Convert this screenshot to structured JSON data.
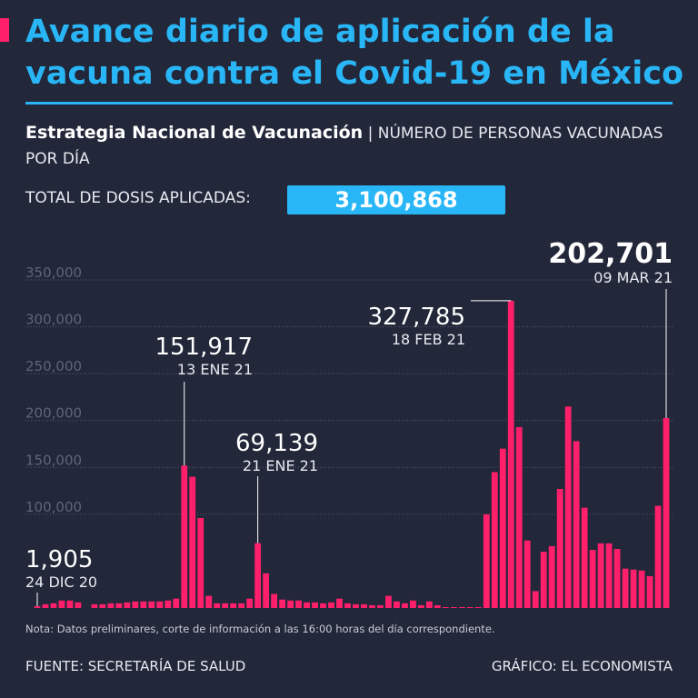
{
  "header": {
    "title": "Avance diario de aplicación de la vacuna contra el Covid-19 en México",
    "subtitle_bold": "Estrategia Nacional de Vacunación",
    "subtitle_rest": "| NÚMERO DE PERSONAS VACUNADAS POR DÍA",
    "total_label": "TOTAL DE DOSIS APLICADAS:",
    "total_value": "3,100,868"
  },
  "footer": {
    "note": "Nota: Datos preliminares, corte de información a las 16:00 horas del día correspondiente.",
    "source": "FUENTE: SECRETARÍA DE SALUD",
    "credit": "GRÁFICO: EL ECONOMISTA"
  },
  "colors": {
    "background": "#22273a",
    "accent_blue": "#29b6f6",
    "bar": "#ff1f6b",
    "grid": "#555b70",
    "tick": "#5f6579"
  },
  "chart_data": {
    "type": "bar",
    "title": "Avance diario de aplicación de la vacuna contra el Covid-19 en México",
    "xlabel": "",
    "ylabel": "Número de personas vacunadas por día",
    "ylim": [
      0,
      350000
    ],
    "yticks": [
      {
        "value": 350000,
        "label": "350,000"
      },
      {
        "value": 300000,
        "label": "300,000"
      },
      {
        "value": 250000,
        "label": "250,000"
      },
      {
        "value": 200000,
        "label": "200,000"
      },
      {
        "value": 150000,
        "label": "150,000"
      },
      {
        "value": 100000,
        "label": "100,000"
      }
    ],
    "first_date": "24 DIC 20",
    "last_date": "09 MAR 21",
    "values": [
      1905,
      4000,
      5000,
      8000,
      8000,
      6000,
      0,
      4000,
      4000,
      5000,
      5000,
      6000,
      7000,
      7000,
      7000,
      7000,
      8000,
      10000,
      151917,
      140000,
      96000,
      13000,
      5000,
      5000,
      5000,
      5000,
      10000,
      69139,
      37000,
      15000,
      9000,
      8000,
      8000,
      6000,
      6000,
      5000,
      6000,
      10000,
      5000,
      4000,
      4000,
      3000,
      3000,
      13000,
      7000,
      5000,
      8000,
      3000,
      7000,
      3000,
      1000,
      1000,
      1000,
      1000,
      1000,
      100000,
      145000,
      170000,
      327785,
      193000,
      72000,
      18000,
      60000,
      66000,
      127000,
      215000,
      178000,
      107000,
      62000,
      69000,
      69000,
      63000,
      42000,
      41000,
      40000,
      34000,
      109000,
      202701
    ],
    "annotations": [
      {
        "index": 0,
        "value": "1,905",
        "date": "24 DIC 20"
      },
      {
        "index": 18,
        "value": "151,917",
        "date": "13 ENE 21"
      },
      {
        "index": 27,
        "value": "69,139",
        "date": "21 ENE 21"
      },
      {
        "index": 58,
        "value": "327,785",
        "date": "18 FEB 21"
      },
      {
        "index": 77,
        "value": "202,701",
        "date": "09 MAR 21"
      }
    ]
  }
}
